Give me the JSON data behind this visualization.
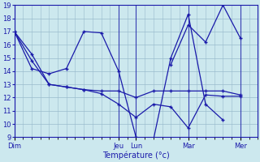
{
  "title": "Température (°c)",
  "background_color": "#cce8ee",
  "grid_color": "#99bbcc",
  "line_color": "#1a1aaa",
  "ylim": [
    9,
    19
  ],
  "yticks": [
    9,
    10,
    11,
    12,
    13,
    14,
    15,
    16,
    17,
    18,
    19
  ],
  "day_labels": [
    "Dim",
    "Jeu",
    "Lun",
    "Mar",
    "Mer"
  ],
  "day_positions": [
    0,
    12,
    14,
    20,
    26
  ],
  "xlim": [
    0,
    28
  ],
  "series1": {
    "x": [
      0,
      2,
      4,
      6,
      8,
      10,
      12,
      14,
      16,
      18,
      20,
      22,
      24,
      26
    ],
    "y": [
      17,
      14.8,
      13.0,
      12.8,
      12.6,
      12.3,
      11.5,
      10.5,
      11.5,
      11.3,
      9.7,
      12.2,
      12.1,
      12.1
    ]
  },
  "series2": {
    "x": [
      0,
      2,
      4,
      6,
      8,
      10,
      12,
      14,
      16,
      18,
      20,
      22,
      24,
      26
    ],
    "y": [
      17,
      15.3,
      13.0,
      12.8,
      12.6,
      12.5,
      12.5,
      12.0,
      12.5,
      12.5,
      12.5,
      12.5,
      12.5,
      12.2
    ]
  },
  "series3": {
    "x": [
      0,
      2,
      4,
      6,
      8,
      10,
      12,
      14,
      16,
      18,
      20,
      22,
      24
    ],
    "y": [
      17,
      14.2,
      13.8,
      14.2,
      17.0,
      16.9,
      14.0,
      9.0,
      8.8,
      15.0,
      18.3,
      11.5,
      10.3
    ]
  },
  "series4": {
    "x": [
      18,
      20,
      22,
      24,
      26
    ],
    "y": [
      14.5,
      17.5,
      16.2,
      19.0,
      16.5
    ]
  }
}
